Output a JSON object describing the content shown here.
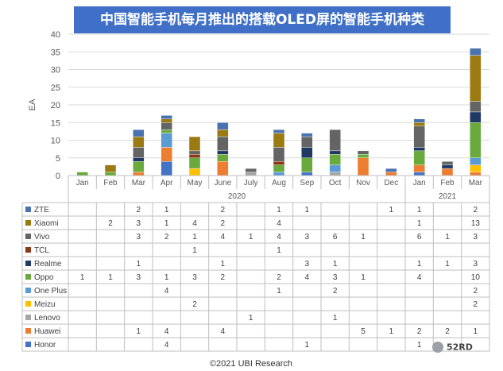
{
  "title": "中国智能手机每月推出的搭载OLED屏的智能手机种类",
  "copyright": "©2021 UBI Research",
  "watermark": "52RD",
  "colors": {
    "title_bg": "#3f6fc6",
    "ZTE": "#4a72b0",
    "Xiaomi": "#9c7a12",
    "Vivo": "#646464",
    "TCL": "#8b3a16",
    "Realme": "#1f3864",
    "Oppo": "#6aaa3c",
    "One Plus": "#5b9bd5",
    "Meizu": "#ffc000",
    "Lenovo": "#a5a5a5",
    "Huawei": "#ed7d31",
    "Honor": "#4472c4"
  },
  "chart_data": {
    "type": "bar",
    "stacked": true,
    "title": "中国智能手机每月推出的搭载OLED屏的智能手机种类",
    "ylabel": "EA",
    "ylim": [
      0,
      40
    ],
    "yticks": [
      0,
      5,
      10,
      15,
      20,
      25,
      30,
      35,
      40
    ],
    "grid": true,
    "categories": [
      "Jan",
      "Feb",
      "Mar",
      "Apr",
      "May",
      "June",
      "July",
      "Aug",
      "Sep",
      "Oct",
      "Nov",
      "Dec",
      "Jan",
      "Feb",
      "Mar"
    ],
    "year_labels": [
      {
        "label": "2020",
        "start": 0,
        "end": 11
      },
      {
        "label": "2021",
        "start": 12,
        "end": 14
      }
    ],
    "series": [
      {
        "name": "Honor",
        "values": [
          null,
          null,
          null,
          4,
          null,
          null,
          null,
          null,
          1,
          null,
          null,
          null,
          1,
          null,
          null
        ]
      },
      {
        "name": "Huawei",
        "values": [
          null,
          null,
          1,
          4,
          null,
          4,
          null,
          null,
          null,
          null,
          5,
          1,
          2,
          2,
          1
        ]
      },
      {
        "name": "Lenovo",
        "values": [
          null,
          null,
          null,
          null,
          null,
          null,
          1,
          null,
          null,
          1,
          null,
          null,
          null,
          null,
          null
        ]
      },
      {
        "name": "Meizu",
        "values": [
          null,
          null,
          null,
          null,
          2,
          null,
          null,
          null,
          null,
          null,
          null,
          null,
          null,
          null,
          2
        ]
      },
      {
        "name": "One Plus",
        "values": [
          null,
          null,
          null,
          4,
          null,
          null,
          null,
          1,
          null,
          2,
          null,
          null,
          null,
          null,
          2
        ]
      },
      {
        "name": "Oppo",
        "values": [
          1,
          1,
          3,
          1,
          3,
          2,
          null,
          2,
          4,
          3,
          1,
          null,
          4,
          null,
          10
        ]
      },
      {
        "name": "Realme",
        "values": [
          null,
          null,
          1,
          null,
          null,
          1,
          null,
          null,
          3,
          1,
          null,
          null,
          1,
          1,
          3
        ]
      },
      {
        "name": "TCL",
        "values": [
          null,
          null,
          null,
          null,
          1,
          null,
          null,
          1,
          null,
          null,
          null,
          null,
          null,
          null,
          null
        ]
      },
      {
        "name": "Vivo",
        "values": [
          null,
          null,
          3,
          2,
          1,
          4,
          1,
          4,
          3,
          6,
          1,
          null,
          6,
          1,
          3
        ]
      },
      {
        "name": "Xiaomi",
        "values": [
          null,
          2,
          3,
          1,
          4,
          2,
          null,
          4,
          null,
          null,
          null,
          null,
          1,
          null,
          13
        ]
      },
      {
        "name": "ZTE",
        "values": [
          null,
          null,
          2,
          1,
          null,
          2,
          null,
          1,
          1,
          null,
          null,
          1,
          1,
          null,
          2
        ]
      }
    ],
    "table_row_order": [
      "ZTE",
      "Xiaomi",
      "Vivo",
      "TCL",
      "Realme",
      "Oppo",
      "One Plus",
      "Meizu",
      "Lenovo",
      "Huawei",
      "Honor"
    ]
  }
}
